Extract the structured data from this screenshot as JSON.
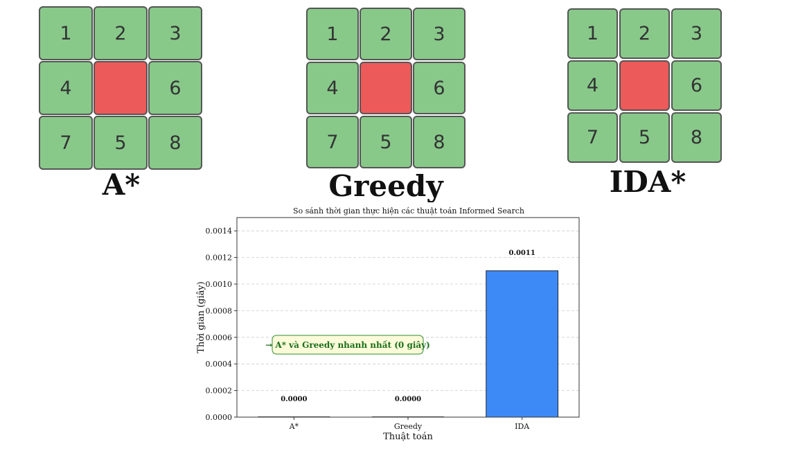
{
  "puzzles": [
    {
      "label": "A*",
      "tiles": [
        "1",
        "2",
        "3",
        "4",
        "",
        "6",
        "7",
        "5",
        "8"
      ]
    },
    {
      "label": "Greedy",
      "tiles": [
        "1",
        "2",
        "3",
        "4",
        "",
        "6",
        "7",
        "5",
        "8"
      ]
    },
    {
      "label": "IDA*",
      "tiles": [
        "1",
        "2",
        "3",
        "4",
        "",
        "6",
        "7",
        "5",
        "8"
      ]
    }
  ],
  "colors": {
    "tile": "#88c98a",
    "blank": "#ec5a5a",
    "bar_highlight": "#3d8af7"
  },
  "chart_data": {
    "type": "bar",
    "title": "So sánh thời gian thực hiện các thuật toán Informed Search",
    "xlabel": "Thuật toán",
    "ylabel": "Thời gian (giây)",
    "categories": [
      "A*",
      "Greedy",
      "IDA"
    ],
    "values": [
      0.0,
      0.0,
      0.0011
    ],
    "value_labels": [
      "0.0000",
      "0.0000",
      "0.0011"
    ],
    "ylim": [
      0,
      0.0015
    ],
    "yticks": [
      "0.0000",
      "0.0002",
      "0.0004",
      "0.0006",
      "0.0008",
      "0.0010",
      "0.0012",
      "0.0014"
    ],
    "grid": "horizontal-dashed",
    "annotation": "→ A* và Greedy nhanh nhất (0 giây)"
  }
}
